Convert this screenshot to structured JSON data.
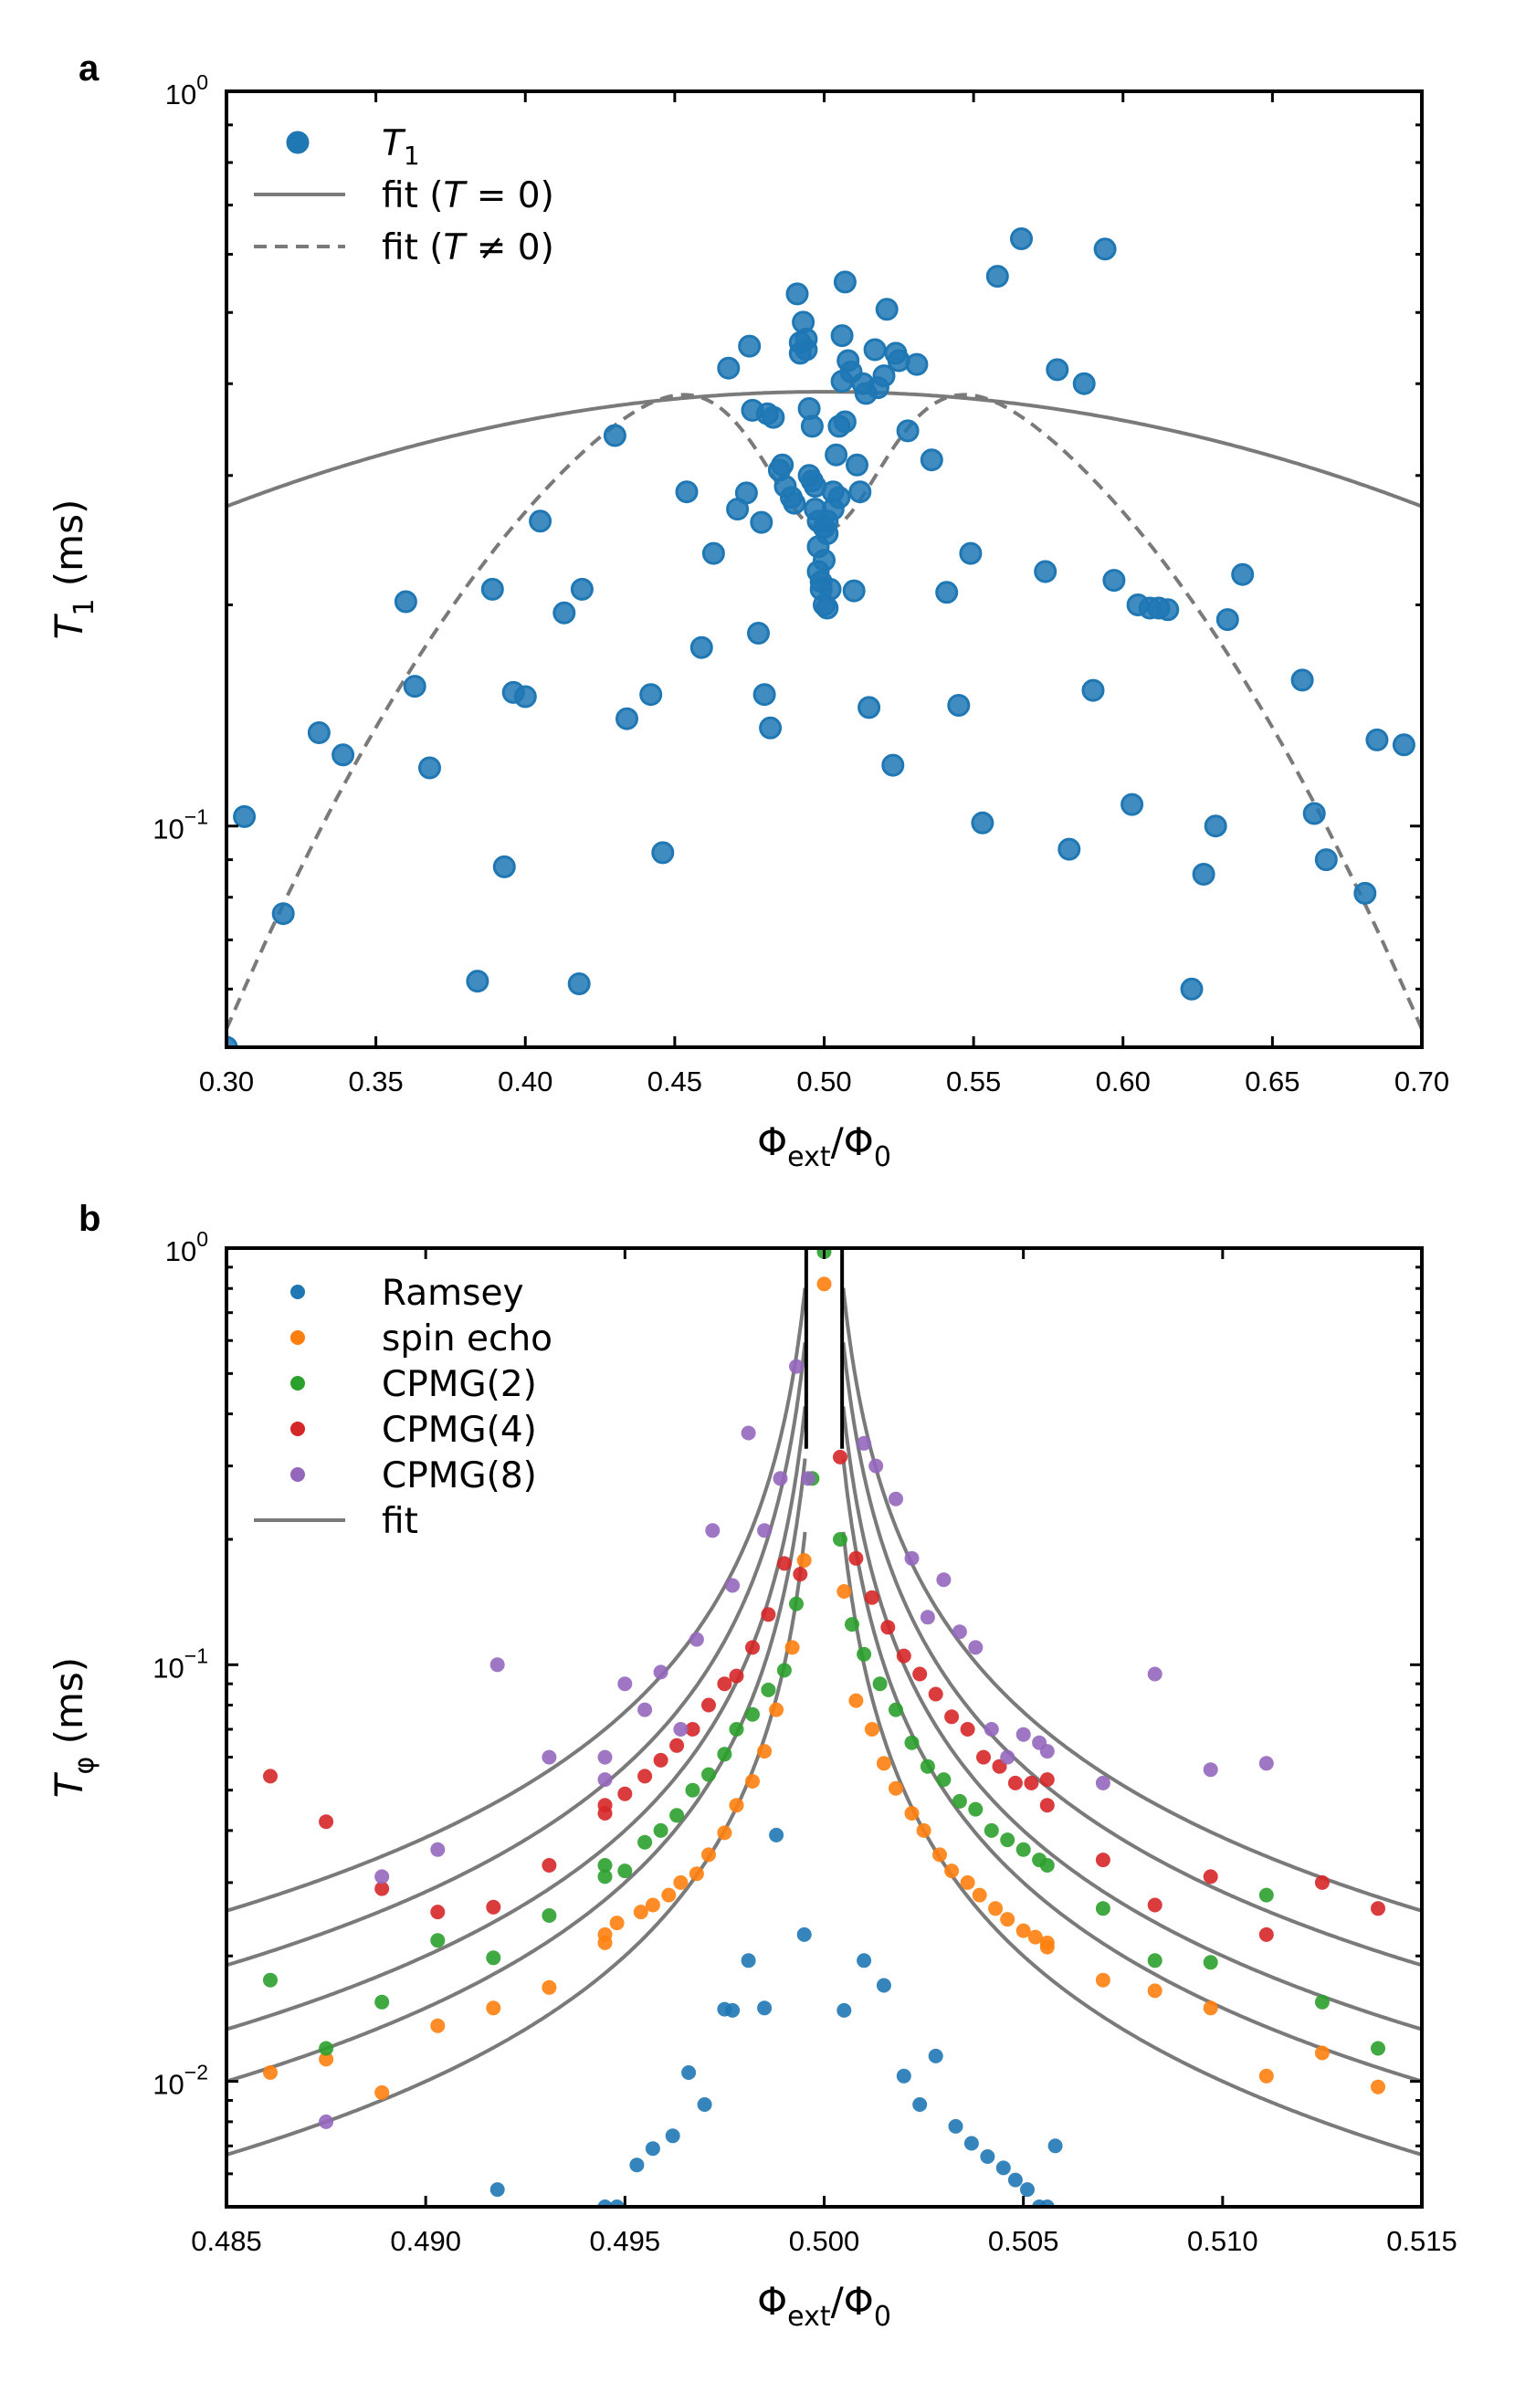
{
  "chart_data": [
    {
      "type": "scatter",
      "panel_label": "a",
      "ylabel": {
        "main": "T",
        "sub": "1",
        "unit": " (ms)"
      },
      "xlabel": {
        "main": "Φ",
        "sub": "ext",
        "div": "/Φ",
        "sub2": "0"
      },
      "yscale": "log",
      "xlim": [
        0.3,
        0.7
      ],
      "ylim": [
        0.05,
        1.0
      ],
      "xticks": [
        "0.30",
        "0.35",
        "0.40",
        "0.45",
        "0.50",
        "0.55",
        "0.60",
        "0.65",
        "0.70"
      ],
      "yticks": [
        {
          "base": "10",
          "exp": "0",
          "value": 1.0
        },
        {
          "base": "10",
          "exp": "−1",
          "value": 0.1
        }
      ],
      "legend_position": "top-left",
      "legend": [
        {
          "kind": "marker",
          "label": "T",
          "sub": "1",
          "color": "#1f77b4"
        },
        {
          "kind": "solid",
          "label": "fit (T = 0)"
        },
        {
          "kind": "dashed",
          "label": "fit (T ≠ 0)"
        }
      ],
      "colors": {
        "points": "#1f77b4",
        "fit": "#7a7a7a"
      },
      "series": [
        {
          "name": "T1",
          "x": [
            0.3,
            0.306,
            0.319,
            0.331,
            0.339,
            0.36,
            0.363,
            0.368,
            0.384,
            0.389,
            0.393,
            0.396,
            0.4,
            0.405,
            0.413,
            0.418,
            0.419,
            0.43,
            0.434,
            0.442,
            0.446,
            0.454,
            0.459,
            0.463,
            0.468,
            0.471,
            0.474,
            0.475,
            0.476,
            0.478,
            0.479,
            0.48,
            0.481,
            0.482,
            0.483,
            0.485,
            0.486,
            0.487,
            0.489,
            0.49,
            0.491,
            0.492,
            0.492,
            0.493,
            0.494,
            0.494,
            0.495,
            0.495,
            0.496,
            0.496,
            0.497,
            0.497,
            0.498,
            0.498,
            0.498,
            0.499,
            0.499,
            0.5,
            0.5,
            0.5,
            0.501,
            0.501,
            0.501,
            0.502,
            0.503,
            0.503,
            0.504,
            0.505,
            0.505,
            0.506,
            0.506,
            0.507,
            0.507,
            0.508,
            0.509,
            0.51,
            0.511,
            0.512,
            0.513,
            0.514,
            0.515,
            0.517,
            0.518,
            0.52,
            0.521,
            0.523,
            0.524,
            0.525,
            0.528,
            0.531,
            0.536,
            0.541,
            0.545,
            0.549,
            0.553,
            0.558,
            0.566,
            0.574,
            0.578,
            0.582,
            0.587,
            0.59,
            0.594,
            0.597,
            0.603,
            0.605,
            0.609,
            0.612,
            0.615,
            0.623,
            0.627,
            0.631,
            0.635,
            0.64,
            0.66,
            0.664,
            0.668,
            0.681,
            0.685,
            0.694
          ],
          "y": [
            0.05,
            0.103,
            0.076,
            0.134,
            0.125,
            0.202,
            0.155,
            0.12,
            0.0615,
            0.21,
            0.088,
            0.152,
            0.15,
            0.26,
            0.195,
            0.061,
            0.21,
            0.34,
            0.14,
            0.151,
            0.092,
            0.285,
            0.175,
            0.235,
            0.42,
            0.27,
            0.284,
            0.45,
            0.368,
            0.183,
            0.259,
            0.151,
            0.364,
            0.136,
            0.36,
            0.305,
            0.31,
            0.29,
            0.28,
            0.275,
            0.53,
            0.455,
            0.44,
            0.485,
            0.46,
            0.445,
            0.37,
            0.3,
            0.35,
            0.295,
            0.29,
            0.27,
            0.26,
            0.24,
            0.222,
            0.215,
            0.21,
            0.2,
            0.23,
            0.255,
            0.26,
            0.25,
            0.198,
            0.21,
            0.285,
            0.27,
            0.32,
            0.28,
            0.35,
            0.403,
            0.465,
            0.55,
            0.355,
            0.43,
            0.415,
            0.209,
            0.31,
            0.285,
            0.4,
            0.388,
            0.145,
            0.445,
            0.395,
            0.41,
            0.505,
            0.121,
            0.44,
            0.43,
            0.345,
            0.425,
            0.315,
            0.208,
            0.146,
            0.235,
            0.101,
            0.56,
            0.63,
            0.222,
            0.418,
            0.093,
            0.4,
            0.153,
            0.61,
            0.216,
            0.107,
            0.2,
            0.198,
            0.198,
            0.197,
            0.06,
            0.086,
            0.1,
            0.191,
            0.22,
            0.158,
            0.104,
            0.09,
            0.081,
            0.131,
            0.129
          ]
        }
      ]
    },
    {
      "type": "scatter",
      "panel_label": "b",
      "ylabel": {
        "main": "T",
        "sub": "φ",
        "unit": " (ms)"
      },
      "xlabel": {
        "main": "Φ",
        "sub": "ext",
        "div": "/Φ",
        "sub2": "0"
      },
      "yscale": "log",
      "xlim": [
        0.485,
        0.515
      ],
      "ylim": [
        0.005,
        1.0
      ],
      "xticks": [
        "0.485",
        "0.490",
        "0.495",
        "0.500",
        "0.505",
        "0.510",
        "0.515"
      ],
      "yticks": [
        {
          "base": "10",
          "exp": "0",
          "value": 1.0
        },
        {
          "base": "10",
          "exp": "−1",
          "value": 0.1
        },
        {
          "base": "10",
          "exp": "−2",
          "value": 0.01
        }
      ],
      "legend_position": "top-left",
      "legend": [
        {
          "kind": "marker",
          "label": "Ramsey",
          "color": "#1f77b4"
        },
        {
          "kind": "marker",
          "label": "spin echo",
          "color": "#ff7f0e"
        },
        {
          "kind": "marker",
          "label": "CPMG(2)",
          "color": "#2ca02c"
        },
        {
          "kind": "marker",
          "label": "CPMG(4)",
          "color": "#d62728"
        },
        {
          "kind": "marker",
          "label": "CPMG(8)",
          "color": "#9467bd"
        },
        {
          "kind": "solid",
          "label": "fit"
        }
      ],
      "colors": {
        "fit": "#7a7a7a"
      },
      "fit_curves": [
        {
          "name": "Ramsey fit",
          "amplitude": 0.0001
        },
        {
          "name": "spin echo fit",
          "amplitude": 0.00015
        },
        {
          "name": "CPMG(2) fit",
          "amplitude": 0.0002
        },
        {
          "name": "CPMG(4) fit",
          "amplitude": 0.000285
        },
        {
          "name": "CPMG(8) fit",
          "amplitude": 0.000385
        }
      ],
      "series": [
        {
          "name": "Ramsey",
          "color": "#1f77b4",
          "x": [
            0.4918,
            0.4945,
            0.4948,
            0.4953,
            0.4957,
            0.4962,
            0.4966,
            0.497,
            0.4975,
            0.4977,
            0.4981,
            0.4985,
            0.4988,
            0.4995,
            0.5005,
            0.501,
            0.5015,
            0.502,
            0.5024,
            0.5028,
            0.5033,
            0.5037,
            0.5041,
            0.5045,
            0.5048,
            0.5051,
            0.5054,
            0.5056,
            0.5058
          ],
          "y": [
            0.0055,
            0.005,
            0.005,
            0.0063,
            0.0069,
            0.0074,
            0.0105,
            0.0088,
            0.0149,
            0.0148,
            0.0195,
            0.015,
            0.039,
            0.0225,
            0.0148,
            0.0195,
            0.017,
            0.0103,
            0.0088,
            0.0115,
            0.0078,
            0.0071,
            0.0066,
            0.0062,
            0.0058,
            0.0055,
            0.005,
            0.005,
            0.007
          ]
        },
        {
          "name": "spin echo",
          "color": "#ff7f0e",
          "x": [
            0.4861,
            0.4875,
            0.4889,
            0.4903,
            0.4917,
            0.4931,
            0.4945,
            0.4945,
            0.4948,
            0.4954,
            0.4957,
            0.4961,
            0.4964,
            0.4968,
            0.4971,
            0.4975,
            0.4978,
            0.4982,
            0.4985,
            0.4988,
            0.4992,
            0.4995,
            0.5,
            0.5005,
            0.5008,
            0.5012,
            0.5015,
            0.5018,
            0.5022,
            0.5025,
            0.5029,
            0.5032,
            0.5036,
            0.5039,
            0.5043,
            0.5046,
            0.505,
            0.5053,
            0.5056,
            0.5056,
            0.507,
            0.5083,
            0.5097,
            0.5111,
            0.5125,
            0.5139
          ],
          "y": [
            0.0105,
            0.0113,
            0.0094,
            0.0136,
            0.015,
            0.0168,
            0.0225,
            0.0215,
            0.024,
            0.0255,
            0.0265,
            0.028,
            0.03,
            0.0315,
            0.035,
            0.0395,
            0.046,
            0.0525,
            0.062,
            0.078,
            0.11,
            0.178,
            0.82,
            0.15,
            0.082,
            0.07,
            0.058,
            0.0505,
            0.044,
            0.04,
            0.035,
            0.032,
            0.03,
            0.028,
            0.026,
            0.0245,
            0.023,
            0.0222,
            0.0215,
            0.021,
            0.0175,
            0.0165,
            0.015,
            0.0103,
            0.0117,
            0.0097
          ]
        },
        {
          "name": "CPMG(2)",
          "color": "#2ca02c",
          "x": [
            0.4861,
            0.4875,
            0.4889,
            0.4903,
            0.4917,
            0.4931,
            0.4945,
            0.4945,
            0.495,
            0.4955,
            0.4959,
            0.4963,
            0.4967,
            0.4971,
            0.4975,
            0.4978,
            0.4982,
            0.4986,
            0.499,
            0.4993,
            0.4997,
            0.5,
            0.5004,
            0.5007,
            0.501,
            0.5014,
            0.5018,
            0.5022,
            0.5026,
            0.503,
            0.5034,
            0.5038,
            0.5042,
            0.5046,
            0.505,
            0.5054,
            0.5056,
            0.507,
            0.5083,
            0.5097,
            0.5111,
            0.5125,
            0.5139
          ],
          "y": [
            0.0175,
            0.012,
            0.0155,
            0.0218,
            0.0198,
            0.025,
            0.033,
            0.031,
            0.032,
            0.0375,
            0.04,
            0.0435,
            0.05,
            0.0545,
            0.061,
            0.07,
            0.076,
            0.087,
            0.097,
            0.14,
            0.28,
            0.98,
            0.2,
            0.125,
            0.106,
            0.09,
            0.078,
            0.065,
            0.057,
            0.053,
            0.047,
            0.045,
            0.04,
            0.038,
            0.036,
            0.034,
            0.033,
            0.026,
            0.0195,
            0.0193,
            0.028,
            0.0155,
            0.012
          ]
        },
        {
          "name": "CPMG(4)",
          "color": "#d62728",
          "x": [
            0.4861,
            0.4875,
            0.4889,
            0.4903,
            0.4917,
            0.4931,
            0.4945,
            0.4945,
            0.495,
            0.4955,
            0.4959,
            0.4963,
            0.4967,
            0.4971,
            0.4975,
            0.4978,
            0.4982,
            0.4986,
            0.499,
            0.4994,
            0.5004,
            0.5008,
            0.5012,
            0.5016,
            0.502,
            0.5024,
            0.5028,
            0.5032,
            0.5036,
            0.504,
            0.5044,
            0.5048,
            0.5052,
            0.5056,
            0.5056,
            0.507,
            0.5083,
            0.5097,
            0.5111,
            0.5125,
            0.5139
          ],
          "y": [
            0.054,
            0.042,
            0.029,
            0.0255,
            0.0262,
            0.033,
            0.044,
            0.046,
            0.049,
            0.054,
            0.059,
            0.064,
            0.07,
            0.08,
            0.09,
            0.094,
            0.11,
            0.132,
            0.175,
            0.165,
            0.315,
            0.18,
            0.145,
            0.123,
            0.105,
            0.095,
            0.085,
            0.075,
            0.07,
            0.06,
            0.057,
            0.052,
            0.052,
            0.053,
            0.046,
            0.034,
            0.0265,
            0.031,
            0.0225,
            0.03,
            0.026
          ]
        },
        {
          "name": "CPMG(8)",
          "color": "#9467bd",
          "x": [
            0.4875,
            0.4889,
            0.4903,
            0.4918,
            0.4931,
            0.4945,
            0.4945,
            0.495,
            0.4955,
            0.4959,
            0.4964,
            0.4968,
            0.4972,
            0.4977,
            0.4981,
            0.4985,
            0.4989,
            0.4993,
            0.4996,
            0.501,
            0.5013,
            0.5018,
            0.5022,
            0.5026,
            0.503,
            0.5034,
            0.5038,
            0.5042,
            0.5046,
            0.505,
            0.5054,
            0.5056,
            0.507,
            0.5083,
            0.5097,
            0.5111
          ],
          "y": [
            0.008,
            0.031,
            0.036,
            0.1,
            0.06,
            0.053,
            0.06,
            0.09,
            0.078,
            0.096,
            0.07,
            0.115,
            0.21,
            0.155,
            0.36,
            0.21,
            0.28,
            0.52,
            0.28,
            0.34,
            0.3,
            0.25,
            0.18,
            0.13,
            0.16,
            0.12,
            0.11,
            0.07,
            0.06,
            0.068,
            0.065,
            0.062,
            0.052,
            0.095,
            0.056,
            0.058
          ]
        }
      ]
    }
  ]
}
